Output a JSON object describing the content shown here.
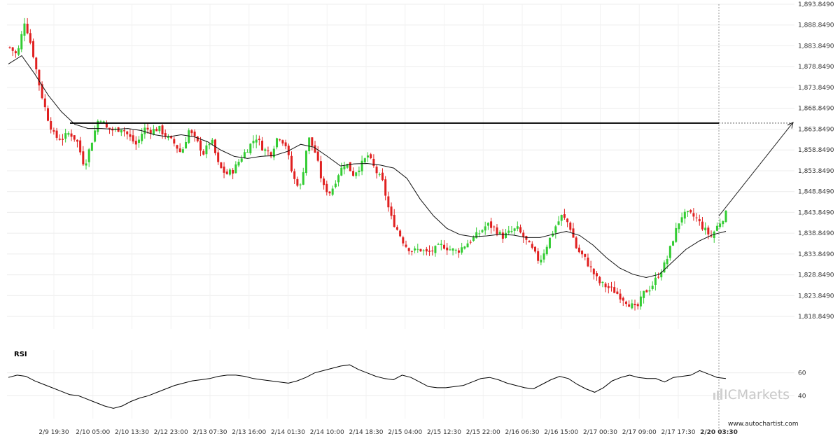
{
  "chart_data": [
    {
      "type": "candlestick",
      "title": "",
      "xlabel": "",
      "ylabel": "",
      "ylim": [
        1815.849,
        1893.849
      ],
      "y_ticks": [
        "1,893.8490",
        "1,888.8490",
        "1,883.8490",
        "1,878.8490",
        "1,873.8490",
        "1,868.8490",
        "1,863.8490",
        "1,858.8490",
        "1,853.8490",
        "1,848.8490",
        "1,843.8490",
        "1,838.8490",
        "1,833.8490",
        "1,828.8490",
        "1,823.8490",
        "1,818.8490"
      ],
      "y_tick_values": [
        1893.849,
        1888.849,
        1883.849,
        1878.849,
        1873.849,
        1868.849,
        1863.849,
        1858.849,
        1853.849,
        1848.849,
        1843.849,
        1838.849,
        1833.849,
        1828.849,
        1823.849,
        1818.849
      ],
      "x_ticks": [
        "2/9 19:30",
        "2/10 05:00",
        "2/10 13:30",
        "2/12 23:00",
        "2/13 07:30",
        "2/13 16:00",
        "2/14 01:30",
        "2/14 10:00",
        "2/14 18:30",
        "2/15 04:00",
        "2/15 12:30",
        "2/15 22:00",
        "2/16 06:30",
        "2/16 15:00",
        "2/17 00:30",
        "2/17 09:00",
        "2/17 17:30"
      ],
      "current_time_label": "2/20 03:30",
      "colors": {
        "up": "#33cc33",
        "down": "#e02020",
        "ma": "#111111",
        "resistance": "#000000",
        "projection": "#222222"
      },
      "price_path": [
        1883.5,
        1881.5,
        1890,
        1883,
        1874,
        1867,
        1862,
        1861.5,
        1863,
        1861,
        1855,
        1861,
        1867,
        1864,
        1863.5,
        1864.2,
        1862,
        1860,
        1864,
        1863.5,
        1864,
        1862,
        1860.5,
        1858,
        1863.5,
        1861,
        1858,
        1861.5,
        1855,
        1853,
        1854,
        1857,
        1859.5,
        1862,
        1859,
        1858,
        1862.5,
        1860,
        1852,
        1850,
        1862,
        1858,
        1850,
        1848.5,
        1853,
        1856,
        1853,
        1855,
        1857.5,
        1854,
        1851,
        1843,
        1839.5,
        1836,
        1834.5,
        1835,
        1834,
        1835,
        1836,
        1835,
        1834.5,
        1836,
        1837.5,
        1839,
        1841,
        1840,
        1838,
        1839,
        1840,
        1837.5,
        1835,
        1832,
        1836,
        1840,
        1843,
        1841,
        1835,
        1833,
        1830,
        1827,
        1826,
        1825,
        1823.5,
        1822,
        1820.5,
        1824.5,
        1826,
        1829,
        1832,
        1838,
        1843,
        1843.5,
        1842.5,
        1840,
        1838,
        1841,
        1843.5
      ],
      "moving_average_path": [
        1879.5,
        1881.5,
        1877,
        1872,
        1868,
        1865,
        1864,
        1864,
        1863.8,
        1864,
        1863.5,
        1862.5,
        1862,
        1862.5,
        1862,
        1860.8,
        1858.8,
        1857.3,
        1856.8,
        1857.3,
        1857.5,
        1858.5,
        1860.2,
        1859.5,
        1857.3,
        1855,
        1855.5,
        1855.6,
        1855.2,
        1854.5,
        1852,
        1847,
        1843,
        1840,
        1838.5,
        1838,
        1838.2,
        1838.6,
        1838.4,
        1837.8,
        1837.8,
        1838.6,
        1839.3,
        1838.3,
        1836,
        1833,
        1830.5,
        1829,
        1828.2,
        1829,
        1832,
        1835,
        1837,
        1838.5,
        1839.3
      ],
      "resistance_level": 1865.3,
      "projection_target": 1865.3,
      "rsi": {
        "label": "RSI",
        "ticks": [
          "60",
          "40"
        ],
        "tick_values": [
          60,
          40
        ],
        "ylim": [
          20,
          80
        ],
        "values": [
          56,
          58,
          57,
          53,
          50,
          47,
          44,
          41,
          40,
          37,
          34,
          31,
          29,
          31,
          35,
          38,
          40,
          43,
          46,
          49,
          51,
          53,
          54,
          55,
          57,
          58,
          58,
          57,
          55,
          54,
          53,
          52,
          51,
          53,
          56,
          60,
          62,
          64,
          66,
          67,
          63,
          60,
          57,
          55,
          54,
          58,
          56,
          52,
          48,
          47,
          47,
          48,
          49,
          52,
          55,
          56,
          54,
          51,
          49,
          47,
          46,
          50,
          54,
          57,
          55,
          50,
          46,
          43,
          47,
          53,
          56,
          58,
          56,
          55,
          55,
          52,
          56,
          57,
          58,
          62,
          59,
          56,
          55
        ]
      },
      "watermark": "ICMarkets",
      "source": "www.autochartist.com"
    }
  ]
}
